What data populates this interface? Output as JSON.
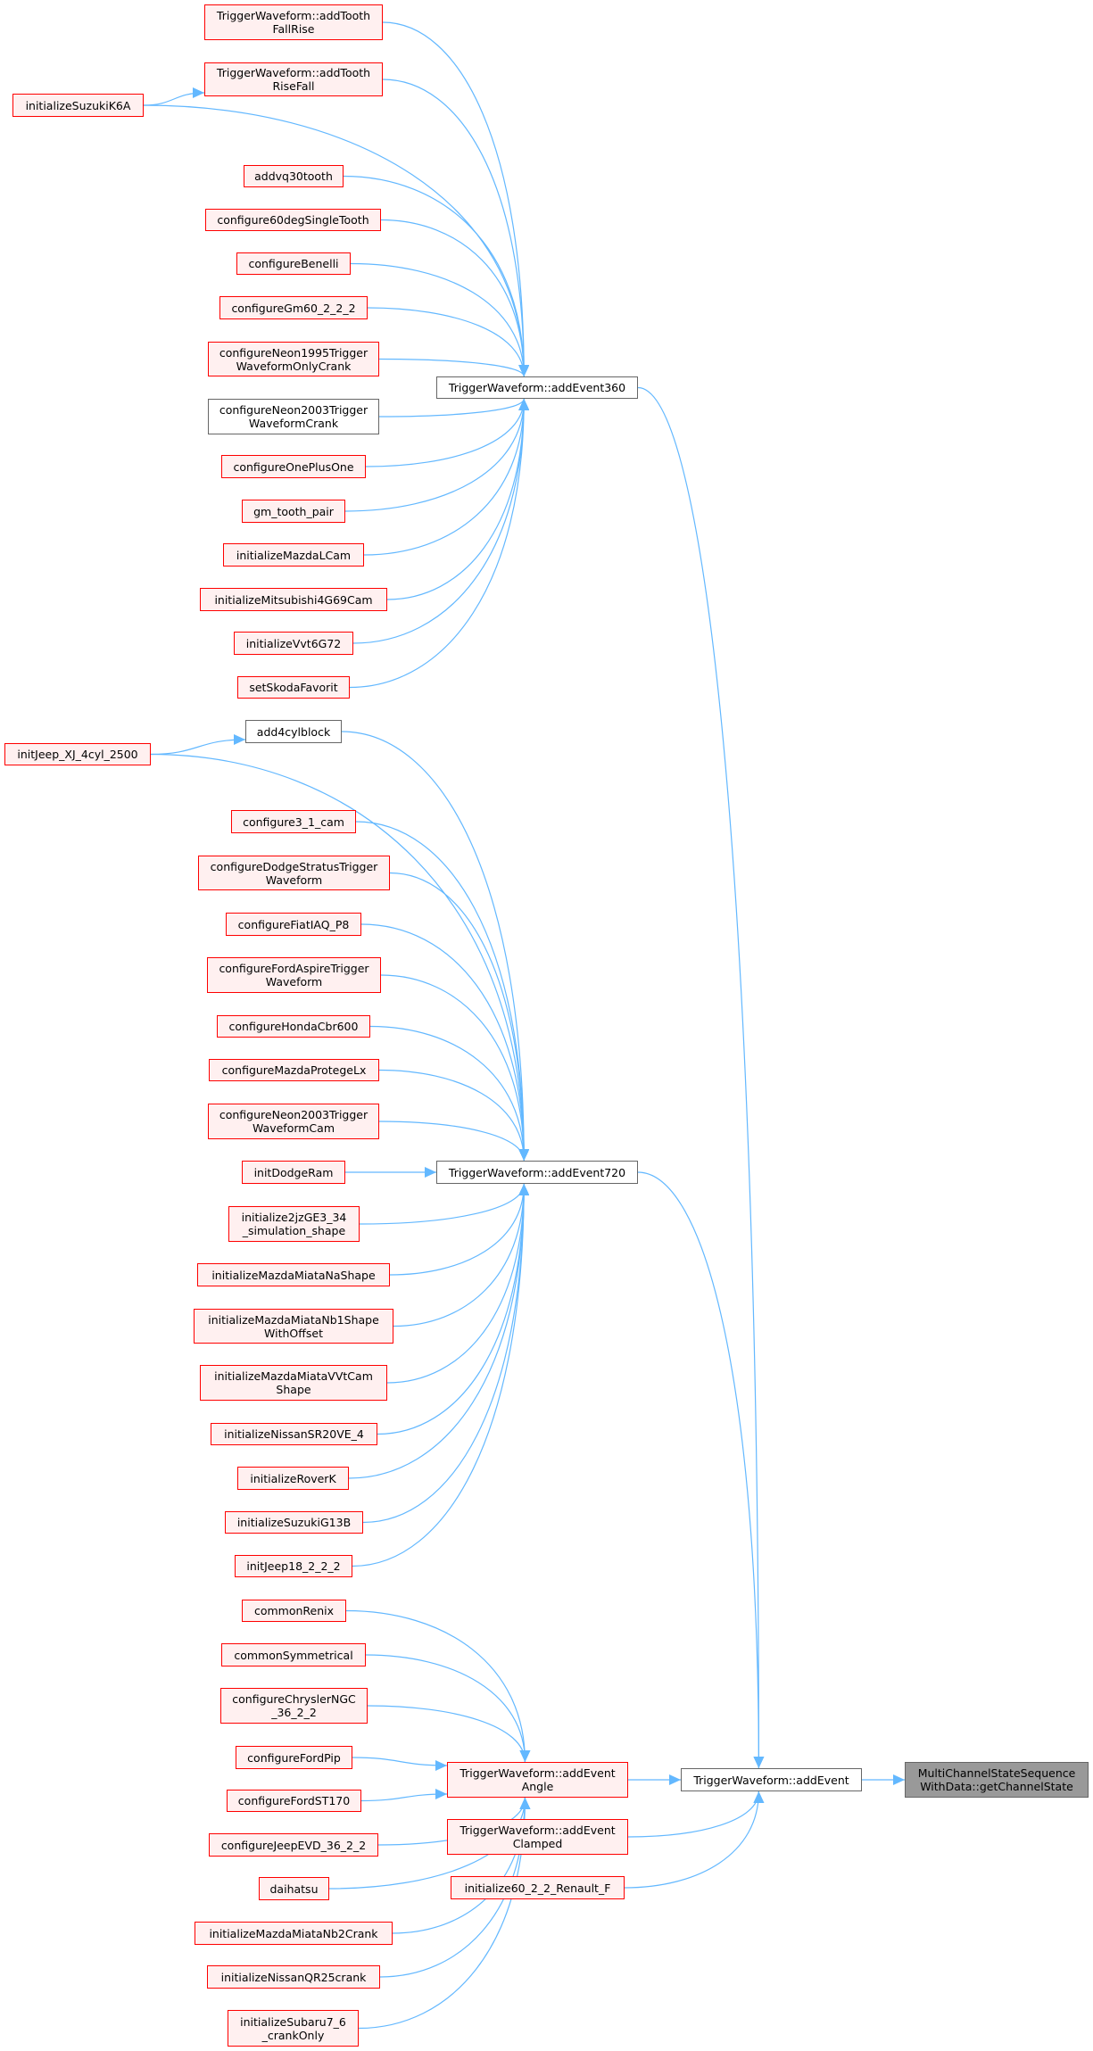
{
  "colors": {
    "edge": "#63b8ff",
    "red_border": "#ff0000",
    "red_fill": "#fff0f0",
    "plain_border": "#666666",
    "root_fill": "#999999"
  },
  "nodes": {
    "fallrise": {
      "lines": [
        "TriggerWaveform::addTooth",
        "FallRise"
      ],
      "style": "red"
    },
    "risefall": {
      "lines": [
        "TriggerWaveform::addTooth",
        "RiseFall"
      ],
      "style": "red"
    },
    "suzukik6a": {
      "lines": [
        "initializeSuzukiK6A"
      ],
      "style": "red"
    },
    "addvq30": {
      "lines": [
        "addvq30tooth"
      ],
      "style": "red"
    },
    "c60deg": {
      "lines": [
        "configure60degSingleTooth"
      ],
      "style": "red"
    },
    "benelli": {
      "lines": [
        "configureBenelli"
      ],
      "style": "red"
    },
    "gm60": {
      "lines": [
        "configureGm60_2_2_2"
      ],
      "style": "red"
    },
    "neon1995": {
      "lines": [
        "configureNeon1995Trigger",
        "WaveformOnlyCrank"
      ],
      "style": "red"
    },
    "neon2003crank": {
      "lines": [
        "configureNeon2003Trigger",
        "WaveformCrank"
      ],
      "style": "plain"
    },
    "oneplusone": {
      "lines": [
        "configureOnePlusOne"
      ],
      "style": "red"
    },
    "gmtooth": {
      "lines": [
        "gm_tooth_pair"
      ],
      "style": "red"
    },
    "mazdalcam": {
      "lines": [
        "initializeMazdaLCam"
      ],
      "style": "red"
    },
    "mitsu": {
      "lines": [
        "initializeMitsubishi4G69Cam"
      ],
      "style": "red"
    },
    "vvt6g72": {
      "lines": [
        "initializeVvt6G72"
      ],
      "style": "red"
    },
    "skoda": {
      "lines": [
        "setSkodaFavorit"
      ],
      "style": "red"
    },
    "ev360": {
      "lines": [
        "TriggerWaveform::addEvent360"
      ],
      "style": "plain"
    },
    "add4cyl": {
      "lines": [
        "add4cylblock"
      ],
      "style": "plain"
    },
    "jeepxj": {
      "lines": [
        "initJeep_XJ_4cyl_2500"
      ],
      "style": "red"
    },
    "c31cam": {
      "lines": [
        "configure3_1_cam"
      ],
      "style": "red"
    },
    "dodgestratus": {
      "lines": [
        "configureDodgeStratusTrigger",
        "Waveform"
      ],
      "style": "red"
    },
    "fiatiaq": {
      "lines": [
        "configureFiatIAQ_P8"
      ],
      "style": "red"
    },
    "fordaspire": {
      "lines": [
        "configureFordAspireTrigger",
        "Waveform"
      ],
      "style": "red"
    },
    "honda": {
      "lines": [
        "configureHondaCbr600"
      ],
      "style": "red"
    },
    "protege": {
      "lines": [
        "configureMazdaProtegeLx"
      ],
      "style": "red"
    },
    "neon2003cam": {
      "lines": [
        "configureNeon2003Trigger",
        "WaveformCam"
      ],
      "style": "red"
    },
    "dodgeram": {
      "lines": [
        "initDodgeRam"
      ],
      "style": "red"
    },
    "jz": {
      "lines": [
        "initialize2jzGE3_34",
        "_simulation_shape"
      ],
      "style": "red"
    },
    "miatana": {
      "lines": [
        "initializeMazdaMiataNaShape"
      ],
      "style": "red"
    },
    "miatanb1": {
      "lines": [
        "initializeMazdaMiataNb1Shape",
        "WithOffset"
      ],
      "style": "red"
    },
    "miatavvt": {
      "lines": [
        "initializeMazdaMiataVVtCam",
        "Shape"
      ],
      "style": "red"
    },
    "sr20": {
      "lines": [
        "initializeNissanSR20VE_4"
      ],
      "style": "red"
    },
    "roverk": {
      "lines": [
        "initializeRoverK"
      ],
      "style": "red"
    },
    "g13b": {
      "lines": [
        "initializeSuzukiG13B"
      ],
      "style": "red"
    },
    "jeep18": {
      "lines": [
        "initJeep18_2_2_2"
      ],
      "style": "red"
    },
    "ev720": {
      "lines": [
        "TriggerWaveform::addEvent720"
      ],
      "style": "plain"
    },
    "renix": {
      "lines": [
        "commonRenix"
      ],
      "style": "red"
    },
    "symm": {
      "lines": [
        "commonSymmetrical"
      ],
      "style": "red"
    },
    "chrysler": {
      "lines": [
        "configureChryslerNGC",
        "_36_2_2"
      ],
      "style": "red"
    },
    "fordpip": {
      "lines": [
        "configureFordPip"
      ],
      "style": "red"
    },
    "st170": {
      "lines": [
        "configureFordST170"
      ],
      "style": "red"
    },
    "jeepevd": {
      "lines": [
        "configureJeepEVD_36_2_2"
      ],
      "style": "red"
    },
    "daihatsu": {
      "lines": [
        "daihatsu"
      ],
      "style": "red"
    },
    "nb2crank": {
      "lines": [
        "initializeMazdaMiataNb2Crank"
      ],
      "style": "red"
    },
    "qr25": {
      "lines": [
        "initializeNissanQR25crank"
      ],
      "style": "red"
    },
    "subaru": {
      "lines": [
        "initializeSubaru7_6",
        "_crankOnly"
      ],
      "style": "red"
    },
    "evangle": {
      "lines": [
        "TriggerWaveform::addEvent",
        "Angle"
      ],
      "style": "red"
    },
    "evclamped": {
      "lines": [
        "TriggerWaveform::addEvent",
        "Clamped"
      ],
      "style": "red"
    },
    "renault": {
      "lines": [
        "initialize60_2_2_Renault_F"
      ],
      "style": "red"
    },
    "addevent": {
      "lines": [
        "TriggerWaveform::addEvent"
      ],
      "style": "plain"
    },
    "root": {
      "lines": [
        "MultiChannelStateSequence",
        "WithData::getChannelState"
      ],
      "style": "root"
    }
  },
  "edges": [
    [
      "suzukik6a",
      "risefall"
    ],
    [
      "suzukik6a",
      "ev360"
    ],
    [
      "fallrise",
      "ev360"
    ],
    [
      "risefall",
      "ev360"
    ],
    [
      "addvq30",
      "ev360"
    ],
    [
      "c60deg",
      "ev360"
    ],
    [
      "benelli",
      "ev360"
    ],
    [
      "gm60",
      "ev360"
    ],
    [
      "neon1995",
      "ev360"
    ],
    [
      "neon2003crank",
      "ev360"
    ],
    [
      "oneplusone",
      "ev360"
    ],
    [
      "gmtooth",
      "ev360"
    ],
    [
      "mazdalcam",
      "ev360"
    ],
    [
      "mitsu",
      "ev360"
    ],
    [
      "vvt6g72",
      "ev360"
    ],
    [
      "skoda",
      "ev360"
    ],
    [
      "jeepxj",
      "add4cyl"
    ],
    [
      "jeepxj",
      "ev720"
    ],
    [
      "add4cyl",
      "ev720"
    ],
    [
      "c31cam",
      "ev720"
    ],
    [
      "dodgestratus",
      "ev720"
    ],
    [
      "fiatiaq",
      "ev720"
    ],
    [
      "fordaspire",
      "ev720"
    ],
    [
      "honda",
      "ev720"
    ],
    [
      "protege",
      "ev720"
    ],
    [
      "neon2003cam",
      "ev720"
    ],
    [
      "dodgeram",
      "ev720"
    ],
    [
      "jz",
      "ev720"
    ],
    [
      "miatana",
      "ev720"
    ],
    [
      "miatanb1",
      "ev720"
    ],
    [
      "miatavvt",
      "ev720"
    ],
    [
      "sr20",
      "ev720"
    ],
    [
      "roverk",
      "ev720"
    ],
    [
      "g13b",
      "ev720"
    ],
    [
      "jeep18",
      "ev720"
    ],
    [
      "renix",
      "evangle"
    ],
    [
      "symm",
      "evangle"
    ],
    [
      "chrysler",
      "evangle"
    ],
    [
      "fordpip",
      "evangle"
    ],
    [
      "st170",
      "evangle"
    ],
    [
      "jeepevd",
      "evangle"
    ],
    [
      "daihatsu",
      "evangle"
    ],
    [
      "nb2crank",
      "evangle"
    ],
    [
      "qr25",
      "evangle"
    ],
    [
      "subaru",
      "evangle"
    ],
    [
      "ev360",
      "addevent"
    ],
    [
      "ev720",
      "addevent"
    ],
    [
      "evangle",
      "addevent"
    ],
    [
      "evclamped",
      "addevent"
    ],
    [
      "renault",
      "addevent"
    ],
    [
      "addevent",
      "root"
    ]
  ]
}
